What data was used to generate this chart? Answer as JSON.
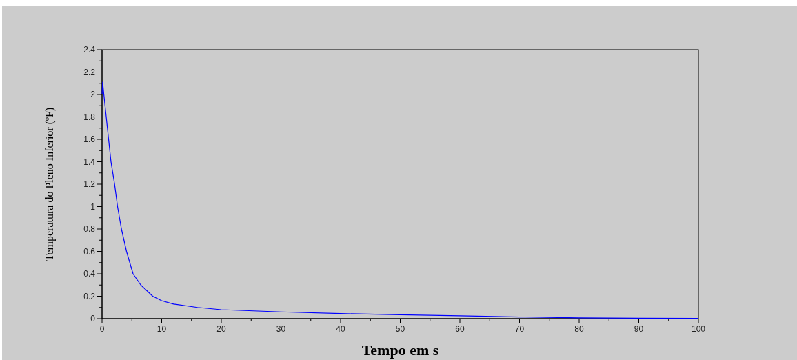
{
  "chart_data": {
    "type": "line",
    "xlabel": "Tempo em s",
    "ylabel": "Temperatura do Pleno Inferior (ºF)",
    "x": [
      0,
      0.1,
      0.3,
      0.7,
      1.1,
      1.5,
      2.1,
      2.6,
      3.25,
      4.1,
      5.2,
      6.5,
      8.5,
      10,
      12,
      16,
      20,
      30,
      40,
      50,
      60,
      70,
      80,
      90,
      100
    ],
    "series": [
      {
        "color": "#0000ff",
        "values": [
          2.0,
          2.11,
          2.0,
          1.8,
          1.6,
          1.4,
          1.2,
          1.0,
          0.8,
          0.6,
          0.4,
          0.3,
          0.2,
          0.16,
          0.13,
          0.1,
          0.08,
          0.06,
          0.045,
          0.035,
          0.025,
          0.015,
          0.007,
          0.004,
          0.003
        ]
      }
    ],
    "xlim": [
      0,
      100
    ],
    "ylim": [
      0,
      2.4
    ],
    "xticks": [
      0,
      {
        "value": 5,
        "label": null
      },
      10,
      {
        "value": 15,
        "label": null
      },
      20,
      {
        "value": 25,
        "label": null
      },
      30,
      {
        "value": 35,
        "label": null
      },
      40,
      {
        "value": 45,
        "label": null
      },
      50,
      {
        "value": 55,
        "label": null
      },
      60,
      {
        "value": 65,
        "label": null
      },
      70,
      {
        "value": 75,
        "label": null
      },
      80,
      {
        "value": 85,
        "label": null
      },
      90,
      {
        "value": 95,
        "label": null
      },
      100
    ],
    "yticks": [
      0,
      {
        "value": 0.1,
        "label": null
      },
      0.2,
      {
        "value": 0.3,
        "label": null
      },
      0.4,
      {
        "value": 0.5,
        "label": null
      },
      0.6,
      {
        "value": 0.7,
        "label": null
      },
      0.8,
      {
        "value": 0.9,
        "label": null
      },
      1,
      {
        "value": 1.1,
        "label": null
      },
      1.2,
      {
        "value": 1.3,
        "label": null
      },
      1.4,
      {
        "value": 1.5,
        "label": null
      },
      1.6,
      {
        "value": 1.7,
        "label": null
      },
      1.8,
      {
        "value": 1.9,
        "label": null
      },
      2,
      {
        "value": 2.1,
        "label": null
      },
      2.2,
      {
        "value": 2.3,
        "label": null
      },
      2.4
    ],
    "grid": false,
    "line_style": "solid",
    "marker": "none"
  }
}
